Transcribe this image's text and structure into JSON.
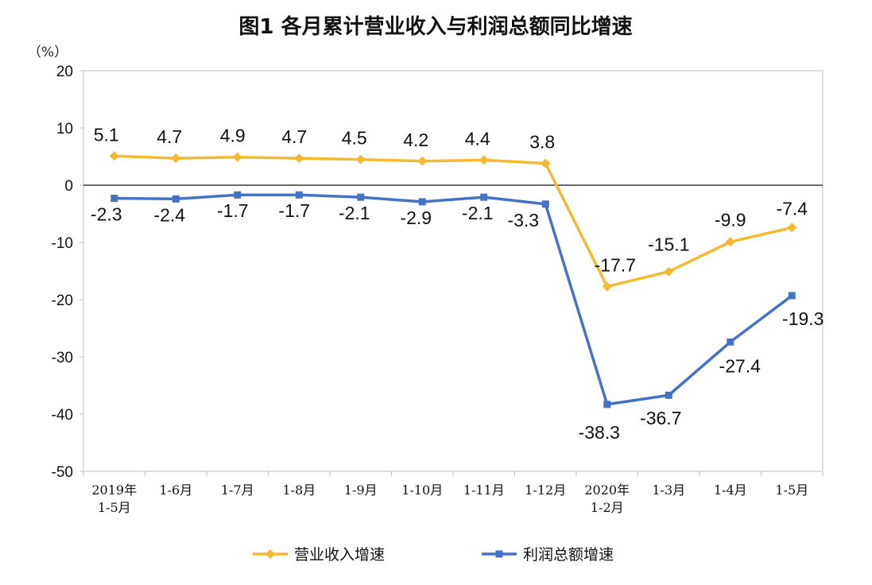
{
  "chart_data": {
    "type": "line",
    "title": "图1  各月累计营业收入与利润总额同比增速",
    "unit_label": "（%）",
    "categories": [
      [
        "2019年",
        "1-5月"
      ],
      [
        "1-6月"
      ],
      [
        "1-7月"
      ],
      [
        "1-8月"
      ],
      [
        "1-9月"
      ],
      [
        "1-10月"
      ],
      [
        "1-11月"
      ],
      [
        "1-12月"
      ],
      [
        "2020年",
        "1-2月"
      ],
      [
        "1-3月"
      ],
      [
        "1-4月"
      ],
      [
        "1-5月"
      ]
    ],
    "ylim": [
      -50,
      20
    ],
    "yticks": [
      20,
      10,
      0,
      -10,
      -20,
      -30,
      -40,
      -50
    ],
    "grid": false,
    "legend_position": "bottom",
    "series": [
      {
        "name": "营业收入增速",
        "color": "#F5B931",
        "marker": "diamond",
        "values": [
          5.1,
          4.7,
          4.9,
          4.7,
          4.5,
          4.2,
          4.4,
          3.8,
          -17.7,
          -15.1,
          -9.9,
          -7.4
        ],
        "labels": [
          "5.1",
          "4.7",
          "4.9",
          "4.7",
          "4.5",
          "4.2",
          "4.4",
          "3.8",
          "-17.7",
          "-15.1",
          "-9.9",
          "-7.4"
        ]
      },
      {
        "name": "利润总额增速",
        "color": "#4472C4",
        "marker": "square",
        "values": [
          -2.3,
          -2.4,
          -1.7,
          -1.7,
          -2.1,
          -2.9,
          -2.1,
          -3.3,
          -38.3,
          -36.7,
          -27.4,
          -19.3
        ],
        "labels": [
          "-2.3",
          "-2.4",
          "-1.7",
          "-1.7",
          "-2.1",
          "-2.9",
          "-2.1",
          "-3.3",
          "-38.3",
          "-36.7",
          "-27.4",
          "-19.3"
        ]
      }
    ]
  }
}
